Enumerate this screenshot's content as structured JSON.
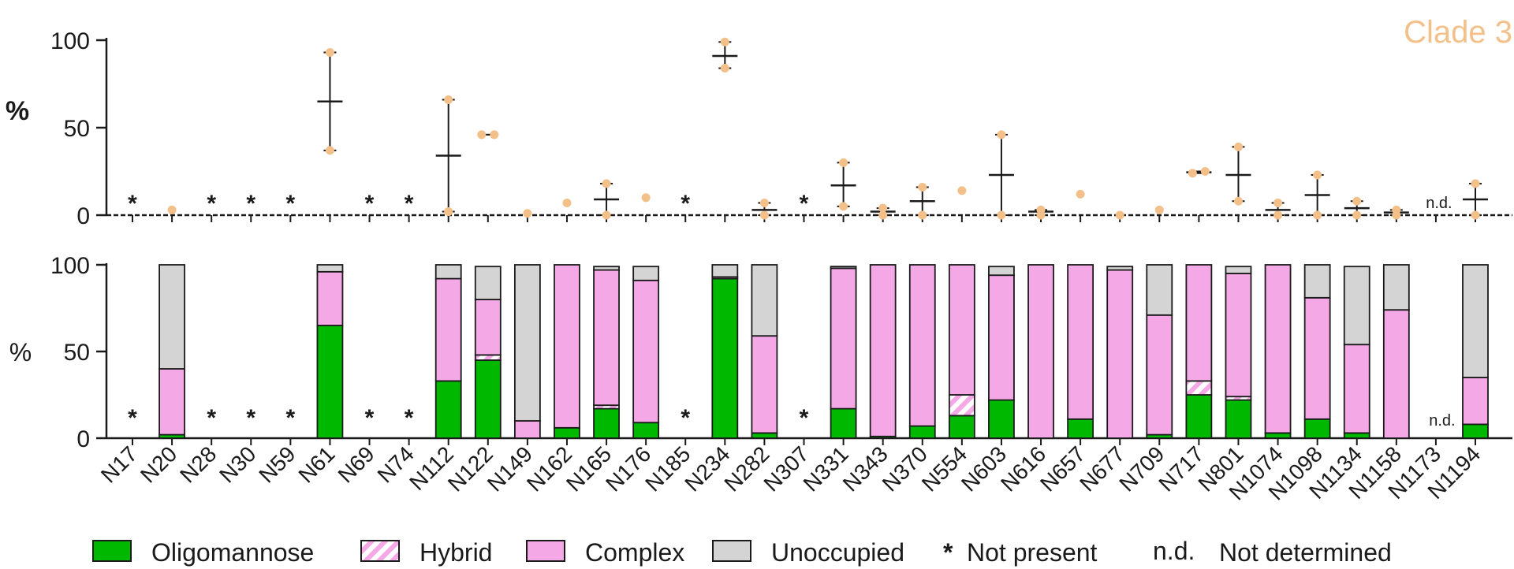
{
  "chart_data": [
    {
      "type": "scatter",
      "title": "Clade 3",
      "ylabel": "%",
      "ylim": [
        0,
        100
      ],
      "yticks": [
        "0",
        "50",
        "100"
      ],
      "marker_color": "#F4C08A",
      "categories": [
        "N17",
        "N20",
        "N28",
        "N30",
        "N59",
        "N61",
        "N69",
        "N74",
        "N112",
        "N122",
        "N149",
        "N162",
        "N165",
        "N176",
        "N185",
        "N234",
        "N282",
        "N307",
        "N331",
        "N343",
        "N370",
        "N554",
        "N603",
        "N616",
        "N657",
        "N677",
        "N709",
        "N717",
        "N801",
        "N1074",
        "N1098",
        "N1134",
        "N1158",
        "N1173",
        "N1194"
      ],
      "points": [
        null,
        [
          3
        ],
        null,
        null,
        [],
        [
          37,
          93
        ],
        null,
        null,
        [
          2,
          66
        ],
        [
          46,
          46
        ],
        [
          1
        ],
        [
          7
        ],
        [
          0,
          18
        ],
        [
          10
        ],
        null,
        [
          84,
          99
        ],
        [
          0,
          7
        ],
        null,
        [
          5,
          30
        ],
        [
          0,
          4
        ],
        [
          0,
          16
        ],
        [
          14
        ],
        [
          0,
          46
        ],
        [
          0,
          3
        ],
        [
          12
        ],
        [
          0
        ],
        [
          3
        ],
        [
          24,
          25
        ],
        [
          8,
          39
        ],
        [
          0,
          7
        ],
        [
          0,
          23
        ],
        [
          0,
          8
        ],
        [
          0,
          3
        ],
        null,
        [
          0,
          18
        ]
      ],
      "mean": [
        null,
        null,
        null,
        null,
        null,
        65,
        null,
        null,
        34,
        null,
        null,
        null,
        9,
        null,
        null,
        91,
        3,
        null,
        17,
        2,
        8,
        null,
        23,
        2,
        null,
        null,
        null,
        24.5,
        23,
        3,
        11.5,
        4,
        1.5,
        null,
        9
      ]
    },
    {
      "type": "bar",
      "stacked": true,
      "ylabel": "%",
      "ylim": [
        0,
        100
      ],
      "yticks": [
        "0",
        "50",
        "100"
      ],
      "categories": [
        "N17",
        "N20",
        "N28",
        "N30",
        "N59",
        "N61",
        "N69",
        "N74",
        "N112",
        "N122",
        "N149",
        "N162",
        "N165",
        "N176",
        "N185",
        "N234",
        "N282",
        "N307",
        "N331",
        "N343",
        "N370",
        "N554",
        "N603",
        "N616",
        "N657",
        "N677",
        "N709",
        "N717",
        "N801",
        "N1074",
        "N1098",
        "N1134",
        "N1158",
        "N1173",
        "N1194"
      ],
      "series": [
        {
          "name": "Oligomannose",
          "color": "#00B800",
          "values": [
            0,
            2,
            0,
            0,
            0,
            65,
            0,
            0,
            33,
            45,
            0,
            6,
            17,
            9,
            0,
            92,
            3,
            0,
            17,
            1,
            7,
            13,
            22,
            0,
            11,
            0,
            2,
            25,
            22,
            3,
            11,
            3,
            0,
            0,
            8
          ]
        },
        {
          "name": "Hybrid",
          "color": "#F5A8E6",
          "values": [
            0,
            0,
            0,
            0,
            0,
            0,
            0,
            0,
            0,
            3,
            0,
            0,
            2,
            0,
            0,
            0,
            0,
            0,
            0,
            0,
            0,
            12,
            0,
            0,
            0,
            0,
            0,
            8,
            2,
            0,
            0,
            0,
            0,
            0,
            0
          ]
        },
        {
          "name": "Complex",
          "color": "#F5A8E6",
          "values": [
            0,
            38,
            0,
            0,
            0,
            31,
            0,
            0,
            59,
            32,
            10,
            94,
            78,
            82,
            0,
            1,
            56,
            0,
            81,
            99,
            93,
            75,
            72,
            100,
            89,
            97,
            69,
            67,
            71,
            97,
            70,
            51,
            74,
            0,
            27
          ]
        },
        {
          "name": "Unoccupied",
          "color": "#D4D4D4",
          "values": [
            0,
            60,
            0,
            0,
            0,
            4,
            0,
            0,
            8,
            19,
            90,
            0,
            2,
            8,
            0,
            7,
            41,
            0,
            1,
            0,
            0,
            0,
            5,
            0,
            0,
            2,
            29,
            0,
            4,
            0,
            19,
            45,
            26,
            0,
            65
          ]
        }
      ],
      "not_present": [
        "N17",
        "N28",
        "N30",
        "N59",
        "N69",
        "N74",
        "N185",
        "N307"
      ],
      "not_determined": [
        "N1173"
      ]
    }
  ],
  "annotations": {
    "star": "*",
    "nd": "n.d."
  },
  "legend": {
    "oligomannose": "Oligomannose",
    "hybrid": "Hybrid",
    "complex": "Complex",
    "unoccupied": "Unoccupied",
    "star": "*",
    "not_present": "Not present",
    "nd": "n.d.",
    "not_determined": "Not determined"
  },
  "colors": {
    "title": "#F4C08A",
    "axis": "#1a1a1a",
    "hybrid_stripe": "#F5A8E6"
  }
}
